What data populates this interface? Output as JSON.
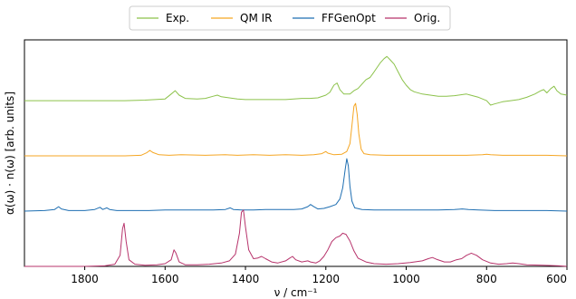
{
  "chart_data": {
    "type": "line",
    "title": "",
    "xlabel": "ν / cm⁻¹",
    "ylabel": "α(ω) · n(ω) [arb. units]",
    "xlim": [
      1950,
      600
    ],
    "x_reversed": true,
    "ylim": [
      0,
      4.1
    ],
    "x_ticks": [
      1800,
      1600,
      1400,
      1200,
      1000,
      800,
      600
    ],
    "y_ticks": [],
    "grid": false,
    "legend_placement": "top-center",
    "series": [
      {
        "name": "Exp.",
        "color": "#8cc24b",
        "offset": 3.0,
        "values": [
          [
            1950,
            0.0
          ],
          [
            1900,
            0.0
          ],
          [
            1850,
            0.0
          ],
          [
            1800,
            0.0
          ],
          [
            1750,
            0.0
          ],
          [
            1700,
            0.0
          ],
          [
            1650,
            0.01
          ],
          [
            1600,
            0.03
          ],
          [
            1585,
            0.12
          ],
          [
            1575,
            0.18
          ],
          [
            1565,
            0.1
          ],
          [
            1550,
            0.04
          ],
          [
            1520,
            0.03
          ],
          [
            1500,
            0.04
          ],
          [
            1480,
            0.08
          ],
          [
            1470,
            0.1
          ],
          [
            1460,
            0.07
          ],
          [
            1440,
            0.05
          ],
          [
            1420,
            0.03
          ],
          [
            1400,
            0.02
          ],
          [
            1380,
            0.02
          ],
          [
            1350,
            0.02
          ],
          [
            1320,
            0.02
          ],
          [
            1300,
            0.02
          ],
          [
            1280,
            0.03
          ],
          [
            1260,
            0.04
          ],
          [
            1240,
            0.04
          ],
          [
            1220,
            0.05
          ],
          [
            1200,
            0.1
          ],
          [
            1190,
            0.15
          ],
          [
            1180,
            0.28
          ],
          [
            1172,
            0.32
          ],
          [
            1165,
            0.2
          ],
          [
            1155,
            0.12
          ],
          [
            1140,
            0.12
          ],
          [
            1130,
            0.18
          ],
          [
            1120,
            0.22
          ],
          [
            1110,
            0.3
          ],
          [
            1100,
            0.38
          ],
          [
            1090,
            0.42
          ],
          [
            1080,
            0.52
          ],
          [
            1065,
            0.68
          ],
          [
            1055,
            0.76
          ],
          [
            1048,
            0.8
          ],
          [
            1040,
            0.74
          ],
          [
            1030,
            0.66
          ],
          [
            1020,
            0.52
          ],
          [
            1010,
            0.38
          ],
          [
            1000,
            0.28
          ],
          [
            990,
            0.2
          ],
          [
            980,
            0.16
          ],
          [
            960,
            0.12
          ],
          [
            940,
            0.1
          ],
          [
            920,
            0.08
          ],
          [
            900,
            0.08
          ],
          [
            880,
            0.09
          ],
          [
            860,
            0.11
          ],
          [
            850,
            0.12
          ],
          [
            840,
            0.1
          ],
          [
            820,
            0.06
          ],
          [
            800,
            0.0
          ],
          [
            790,
            -0.08
          ],
          [
            780,
            -0.06
          ],
          [
            760,
            -0.02
          ],
          [
            740,
            0.0
          ],
          [
            720,
            0.02
          ],
          [
            700,
            0.06
          ],
          [
            680,
            0.12
          ],
          [
            665,
            0.18
          ],
          [
            658,
            0.2
          ],
          [
            650,
            0.14
          ],
          [
            640,
            0.22
          ],
          [
            632,
            0.26
          ],
          [
            625,
            0.18
          ],
          [
            615,
            0.12
          ],
          [
            600,
            0.1
          ]
        ]
      },
      {
        "name": "QM IR",
        "color": "#f5a623",
        "offset": 2.0,
        "values": [
          [
            1950,
            0.0
          ],
          [
            1900,
            0.0
          ],
          [
            1850,
            0.0
          ],
          [
            1800,
            0.0
          ],
          [
            1750,
            0.0
          ],
          [
            1700,
            0.0
          ],
          [
            1660,
            0.01
          ],
          [
            1645,
            0.06
          ],
          [
            1638,
            0.1
          ],
          [
            1630,
            0.06
          ],
          [
            1615,
            0.02
          ],
          [
            1590,
            0.01
          ],
          [
            1560,
            0.02
          ],
          [
            1500,
            0.01
          ],
          [
            1450,
            0.02
          ],
          [
            1420,
            0.01
          ],
          [
            1380,
            0.02
          ],
          [
            1340,
            0.01
          ],
          [
            1300,
            0.02
          ],
          [
            1260,
            0.01
          ],
          [
            1230,
            0.02
          ],
          [
            1210,
            0.04
          ],
          [
            1200,
            0.08
          ],
          [
            1195,
            0.05
          ],
          [
            1180,
            0.02
          ],
          [
            1160,
            0.03
          ],
          [
            1148,
            0.08
          ],
          [
            1140,
            0.22
          ],
          [
            1135,
            0.55
          ],
          [
            1130,
            0.9
          ],
          [
            1126,
            0.95
          ],
          [
            1122,
            0.75
          ],
          [
            1118,
            0.4
          ],
          [
            1112,
            0.12
          ],
          [
            1105,
            0.04
          ],
          [
            1090,
            0.02
          ],
          [
            1050,
            0.01
          ],
          [
            1000,
            0.01
          ],
          [
            950,
            0.01
          ],
          [
            900,
            0.01
          ],
          [
            850,
            0.01
          ],
          [
            810,
            0.02
          ],
          [
            800,
            0.03
          ],
          [
            790,
            0.02
          ],
          [
            760,
            0.01
          ],
          [
            700,
            0.01
          ],
          [
            650,
            0.01
          ],
          [
            600,
            0.0
          ]
        ]
      },
      {
        "name": "FFGenOpt",
        "color": "#1f6fb2",
        "offset": 1.0,
        "values": [
          [
            1950,
            0.0
          ],
          [
            1900,
            0.01
          ],
          [
            1875,
            0.03
          ],
          [
            1865,
            0.08
          ],
          [
            1858,
            0.04
          ],
          [
            1840,
            0.01
          ],
          [
            1800,
            0.01
          ],
          [
            1775,
            0.03
          ],
          [
            1762,
            0.07
          ],
          [
            1755,
            0.03
          ],
          [
            1745,
            0.06
          ],
          [
            1738,
            0.03
          ],
          [
            1720,
            0.01
          ],
          [
            1680,
            0.01
          ],
          [
            1640,
            0.01
          ],
          [
            1600,
            0.02
          ],
          [
            1560,
            0.02
          ],
          [
            1520,
            0.02
          ],
          [
            1480,
            0.02
          ],
          [
            1450,
            0.03
          ],
          [
            1438,
            0.06
          ],
          [
            1430,
            0.03
          ],
          [
            1410,
            0.02
          ],
          [
            1380,
            0.02
          ],
          [
            1350,
            0.03
          ],
          [
            1320,
            0.03
          ],
          [
            1300,
            0.03
          ],
          [
            1280,
            0.03
          ],
          [
            1260,
            0.04
          ],
          [
            1245,
            0.08
          ],
          [
            1238,
            0.12
          ],
          [
            1230,
            0.08
          ],
          [
            1220,
            0.04
          ],
          [
            1205,
            0.05
          ],
          [
            1190,
            0.08
          ],
          [
            1175,
            0.12
          ],
          [
            1165,
            0.22
          ],
          [
            1158,
            0.42
          ],
          [
            1152,
            0.75
          ],
          [
            1148,
            0.95
          ],
          [
            1144,
            0.82
          ],
          [
            1140,
            0.45
          ],
          [
            1135,
            0.18
          ],
          [
            1128,
            0.06
          ],
          [
            1110,
            0.03
          ],
          [
            1080,
            0.02
          ],
          [
            1040,
            0.02
          ],
          [
            1000,
            0.02
          ],
          [
            960,
            0.02
          ],
          [
            920,
            0.02
          ],
          [
            880,
            0.03
          ],
          [
            860,
            0.04
          ],
          [
            845,
            0.03
          ],
          [
            820,
            0.02
          ],
          [
            780,
            0.01
          ],
          [
            740,
            0.01
          ],
          [
            700,
            0.01
          ],
          [
            650,
            0.01
          ],
          [
            600,
            0.0
          ]
        ]
      },
      {
        "name": "Orig.",
        "color": "#b7336b",
        "offset": 0.0,
        "values": [
          [
            1950,
            0.0
          ],
          [
            1900,
            0.0
          ],
          [
            1850,
            0.0
          ],
          [
            1800,
            0.0
          ],
          [
            1750,
            0.01
          ],
          [
            1725,
            0.04
          ],
          [
            1712,
            0.2
          ],
          [
            1706,
            0.68
          ],
          [
            1702,
            0.78
          ],
          [
            1697,
            0.45
          ],
          [
            1690,
            0.12
          ],
          [
            1675,
            0.04
          ],
          [
            1650,
            0.02
          ],
          [
            1620,
            0.03
          ],
          [
            1600,
            0.05
          ],
          [
            1585,
            0.12
          ],
          [
            1578,
            0.3
          ],
          [
            1573,
            0.24
          ],
          [
            1565,
            0.08
          ],
          [
            1550,
            0.03
          ],
          [
            1520,
            0.03
          ],
          [
            1490,
            0.04
          ],
          [
            1460,
            0.06
          ],
          [
            1440,
            0.1
          ],
          [
            1425,
            0.22
          ],
          [
            1415,
            0.6
          ],
          [
            1410,
            0.98
          ],
          [
            1405,
            1.02
          ],
          [
            1400,
            0.72
          ],
          [
            1392,
            0.3
          ],
          [
            1380,
            0.14
          ],
          [
            1370,
            0.15
          ],
          [
            1360,
            0.18
          ],
          [
            1350,
            0.14
          ],
          [
            1335,
            0.08
          ],
          [
            1320,
            0.06
          ],
          [
            1300,
            0.1
          ],
          [
            1290,
            0.15
          ],
          [
            1283,
            0.18
          ],
          [
            1275,
            0.12
          ],
          [
            1260,
            0.08
          ],
          [
            1245,
            0.1
          ],
          [
            1238,
            0.08
          ],
          [
            1225,
            0.06
          ],
          [
            1215,
            0.1
          ],
          [
            1205,
            0.18
          ],
          [
            1195,
            0.3
          ],
          [
            1185,
            0.45
          ],
          [
            1175,
            0.52
          ],
          [
            1165,
            0.55
          ],
          [
            1158,
            0.6
          ],
          [
            1150,
            0.58
          ],
          [
            1140,
            0.46
          ],
          [
            1130,
            0.28
          ],
          [
            1120,
            0.15
          ],
          [
            1100,
            0.08
          ],
          [
            1080,
            0.05
          ],
          [
            1050,
            0.04
          ],
          [
            1020,
            0.05
          ],
          [
            990,
            0.07
          ],
          [
            960,
            0.1
          ],
          [
            945,
            0.14
          ],
          [
            935,
            0.16
          ],
          [
            925,
            0.13
          ],
          [
            905,
            0.08
          ],
          [
            890,
            0.08
          ],
          [
            875,
            0.12
          ],
          [
            862,
            0.14
          ],
          [
            850,
            0.2
          ],
          [
            838,
            0.24
          ],
          [
            825,
            0.2
          ],
          [
            810,
            0.12
          ],
          [
            790,
            0.06
          ],
          [
            770,
            0.04
          ],
          [
            750,
            0.05
          ],
          [
            735,
            0.06
          ],
          [
            720,
            0.05
          ],
          [
            700,
            0.03
          ],
          [
            660,
            0.02
          ],
          [
            620,
            0.01
          ],
          [
            600,
            0.0
          ]
        ]
      }
    ]
  }
}
